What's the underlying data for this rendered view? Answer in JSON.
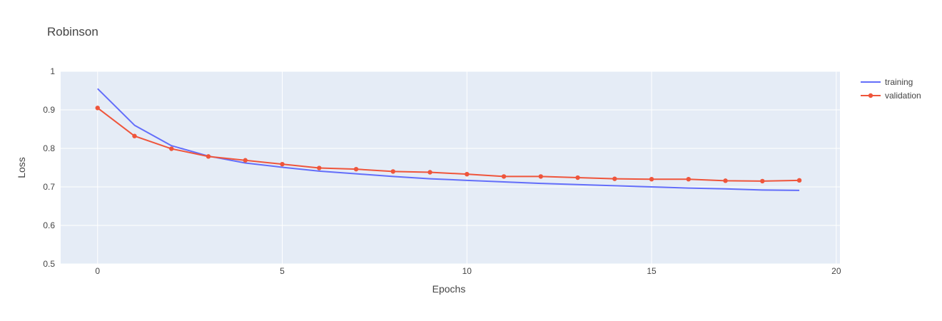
{
  "chart_data": {
    "type": "line",
    "title": "Robinson",
    "xlabel": "Epochs",
    "ylabel": "Loss",
    "xlim": [
      -1,
      20.1
    ],
    "ylim": [
      0.5,
      1.0
    ],
    "x_ticks": [
      0,
      5,
      10,
      15,
      20
    ],
    "y_ticks": [
      0.5,
      0.6,
      0.7,
      0.8,
      0.9,
      1
    ],
    "grid": true,
    "legend_position": "top-right",
    "x": [
      0,
      1,
      2,
      3,
      4,
      5,
      6,
      7,
      8,
      9,
      10,
      11,
      12,
      13,
      14,
      15,
      16,
      17,
      18,
      19
    ],
    "series": [
      {
        "name": "training",
        "color": "#636efa",
        "markers": false,
        "values": [
          0.955,
          0.86,
          0.807,
          0.78,
          0.762,
          0.751,
          0.741,
          0.734,
          0.727,
          0.721,
          0.717,
          0.713,
          0.709,
          0.706,
          0.703,
          0.7,
          0.697,
          0.695,
          0.692,
          0.691
        ]
      },
      {
        "name": "validation",
        "color": "#ef553b",
        "markers": true,
        "values": [
          0.905,
          0.832,
          0.799,
          0.779,
          0.769,
          0.759,
          0.749,
          0.746,
          0.74,
          0.738,
          0.733,
          0.727,
          0.727,
          0.724,
          0.721,
          0.72,
          0.72,
          0.716,
          0.715,
          0.717
        ]
      }
    ]
  },
  "colors": {
    "plot_background": "#e5ecf6",
    "grid": "#ffffff",
    "text": "#444444"
  }
}
